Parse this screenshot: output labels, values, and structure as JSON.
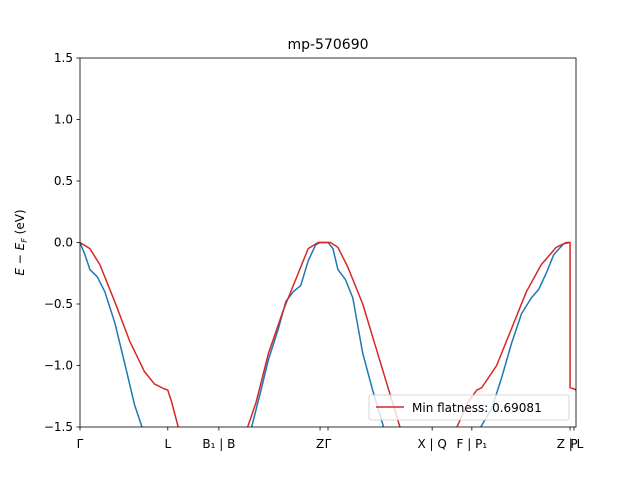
{
  "chart_data": {
    "type": "line",
    "title": "mp-570690",
    "ylabel_html": "E − E_F (eV)",
    "ylim": [
      -1.5,
      1.5
    ],
    "xlim": [
      0,
      1
    ],
    "yticks": [
      {
        "v": 1.5,
        "label": "1.5"
      },
      {
        "v": 1.0,
        "label": "1.0"
      },
      {
        "v": 0.5,
        "label": "0.5"
      },
      {
        "v": 0.0,
        "label": "0.0"
      },
      {
        "v": -0.5,
        "label": "−0.5"
      },
      {
        "v": -1.0,
        "label": "−1.0"
      },
      {
        "v": -1.5,
        "label": "−1.5"
      }
    ],
    "xticks": [
      {
        "x": 0.0,
        "label": "Γ"
      },
      {
        "x": 0.177,
        "label": "L"
      },
      {
        "x": 0.28,
        "label": "B₁ | B"
      },
      {
        "x": 0.484,
        "label": "Z"
      },
      {
        "x": 0.5,
        "label": "Γ"
      },
      {
        "x": 0.71,
        "label": "X | Q"
      },
      {
        "x": 0.79,
        "label": "F | P₁"
      },
      {
        "x": 0.988,
        "label": "Z | L"
      },
      {
        "x": 0.996,
        "label": "P"
      }
    ],
    "series": [
      {
        "name": "",
        "color": "#1f77b4",
        "points": [
          [
            0.0,
            0.0
          ],
          [
            0.01,
            -0.1
          ],
          [
            0.02,
            -0.22
          ],
          [
            0.035,
            -0.28
          ],
          [
            0.05,
            -0.4
          ],
          [
            0.07,
            -0.65
          ],
          [
            0.09,
            -0.98
          ],
          [
            0.11,
            -1.32
          ],
          [
            0.125,
            -1.5
          ],
          null,
          [
            0.346,
            -1.5
          ],
          [
            0.365,
            -1.2
          ],
          [
            0.38,
            -0.95
          ],
          [
            0.4,
            -0.7
          ],
          [
            0.415,
            -0.48
          ],
          [
            0.43,
            -0.4
          ],
          [
            0.445,
            -0.35
          ],
          [
            0.46,
            -0.15
          ],
          [
            0.475,
            -0.02
          ],
          [
            0.484,
            0.0
          ],
          [
            0.5,
            0.0
          ],
          [
            0.51,
            -0.05
          ],
          [
            0.52,
            -0.22
          ],
          [
            0.535,
            -0.3
          ],
          [
            0.55,
            -0.45
          ],
          [
            0.57,
            -0.9
          ],
          [
            0.59,
            -1.2
          ],
          [
            0.612,
            -1.5
          ],
          null,
          [
            0.808,
            -1.5
          ],
          [
            0.83,
            -1.35
          ],
          [
            0.85,
            -1.1
          ],
          [
            0.87,
            -0.82
          ],
          [
            0.89,
            -0.58
          ],
          [
            0.91,
            -0.45
          ],
          [
            0.925,
            -0.38
          ],
          [
            0.94,
            -0.25
          ],
          [
            0.955,
            -0.1
          ],
          [
            0.975,
            -0.01
          ],
          [
            0.988,
            0.0
          ]
        ]
      },
      {
        "name": "Min flatness: 0.69081",
        "color": "#d62728",
        "points": [
          [
            0.0,
            0.0
          ],
          [
            0.02,
            -0.05
          ],
          [
            0.04,
            -0.18
          ],
          [
            0.07,
            -0.48
          ],
          [
            0.1,
            -0.8
          ],
          [
            0.13,
            -1.05
          ],
          [
            0.15,
            -1.15
          ],
          [
            0.17,
            -1.19
          ],
          [
            0.177,
            -1.2
          ],
          [
            0.185,
            -1.3
          ],
          [
            0.198,
            -1.5
          ],
          null,
          [
            0.338,
            -1.5
          ],
          [
            0.355,
            -1.3
          ],
          [
            0.38,
            -0.9
          ],
          [
            0.41,
            -0.55
          ],
          [
            0.435,
            -0.3
          ],
          [
            0.46,
            -0.05
          ],
          [
            0.48,
            0.0
          ],
          [
            0.505,
            0.0
          ],
          [
            0.52,
            -0.04
          ],
          [
            0.54,
            -0.2
          ],
          [
            0.57,
            -0.5
          ],
          [
            0.6,
            -0.9
          ],
          [
            0.63,
            -1.3
          ],
          [
            0.645,
            -1.5
          ],
          null,
          [
            0.76,
            -1.5
          ],
          [
            0.782,
            -1.3
          ],
          [
            0.8,
            -1.2
          ],
          [
            0.81,
            -1.18
          ],
          [
            0.84,
            -1.0
          ],
          [
            0.87,
            -0.7
          ],
          [
            0.9,
            -0.4
          ],
          [
            0.93,
            -0.18
          ],
          [
            0.96,
            -0.04
          ],
          [
            0.98,
            0.0
          ],
          [
            0.988,
            0.0
          ],
          [
            0.988,
            -1.18
          ],
          [
            0.996,
            -1.19
          ],
          [
            1.0,
            -1.2
          ]
        ]
      }
    ],
    "legend": {
      "location": "lower-right",
      "label": "Min flatness: 0.69081",
      "color": "#d62728"
    }
  }
}
